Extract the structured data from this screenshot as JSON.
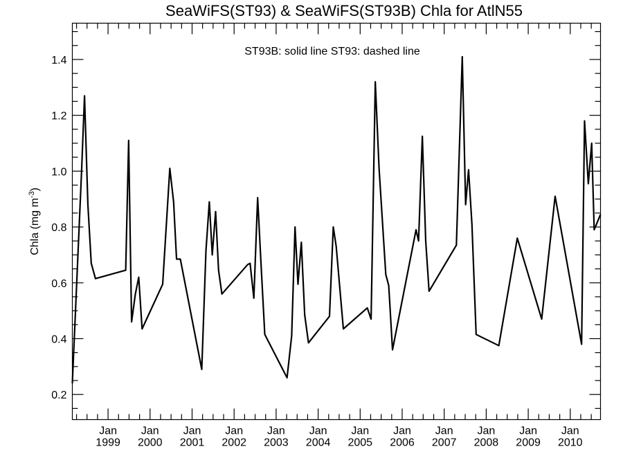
{
  "chart_data": {
    "type": "line",
    "title": "SeaWiFS(ST93) & SeaWiFS(ST93B)  Chla for AtlN55",
    "annotation": "ST93B: solid line   ST93: dashed line",
    "ylabel_main": "Chla (mg m",
    "ylabel_sup": "-3",
    "ylabel_close": ")",
    "ylim": [
      0.11,
      1.53
    ],
    "xlim": [
      1998.15,
      2010.72
    ],
    "yticks": [
      {
        "value": 0.2,
        "label": "0.2"
      },
      {
        "value": 0.4,
        "label": "0.4"
      },
      {
        "value": 0.6,
        "label": "0.6"
      },
      {
        "value": 0.8,
        "label": "0.8"
      },
      {
        "value": 1.0,
        "label": "1.0"
      },
      {
        "value": 1.2,
        "label": "1.2"
      },
      {
        "value": 1.4,
        "label": "1.4"
      }
    ],
    "xticks": [
      {
        "value": 1999.0,
        "month": "Jan",
        "year": "1999"
      },
      {
        "value": 2000.0,
        "month": "Jan",
        "year": "2000"
      },
      {
        "value": 2001.0,
        "month": "Jan",
        "year": "2001"
      },
      {
        "value": 2002.0,
        "month": "Jan",
        "year": "2002"
      },
      {
        "value": 2003.0,
        "month": "Jan",
        "year": "2003"
      },
      {
        "value": 2004.0,
        "month": "Jan",
        "year": "2004"
      },
      {
        "value": 2005.0,
        "month": "Jan",
        "year": "2005"
      },
      {
        "value": 2006.0,
        "month": "Jan",
        "year": "2006"
      },
      {
        "value": 2007.0,
        "month": "Jan",
        "year": "2007"
      },
      {
        "value": 2008.0,
        "month": "Jan",
        "year": "2008"
      },
      {
        "value": 2009.0,
        "month": "Jan",
        "year": "2009"
      },
      {
        "value": 2010.0,
        "month": "Jan",
        "year": "2010"
      }
    ],
    "grid": false,
    "series": [
      {
        "style": "solid",
        "points": [
          [
            1998.15,
            0.24
          ],
          [
            1998.37,
            1.0
          ],
          [
            1998.44,
            1.27
          ],
          [
            1998.52,
            0.88
          ],
          [
            1998.6,
            0.67
          ],
          [
            1998.7,
            0.615
          ],
          [
            1999.42,
            0.645
          ],
          [
            1999.49,
            1.11
          ],
          [
            1999.56,
            0.46
          ],
          [
            1999.65,
            0.56
          ],
          [
            1999.73,
            0.62
          ],
          [
            1999.81,
            0.435
          ],
          [
            2000.3,
            0.595
          ],
          [
            2000.47,
            1.01
          ],
          [
            2000.56,
            0.89
          ],
          [
            2000.63,
            0.685
          ],
          [
            2000.72,
            0.685
          ],
          [
            2001.23,
            0.29
          ],
          [
            2001.33,
            0.715
          ],
          [
            2001.41,
            0.89
          ],
          [
            2001.48,
            0.7
          ],
          [
            2001.56,
            0.855
          ],
          [
            2001.63,
            0.645
          ],
          [
            2001.71,
            0.56
          ],
          [
            2002.32,
            0.665
          ],
          [
            2002.38,
            0.67
          ],
          [
            2002.47,
            0.545
          ],
          [
            2002.56,
            0.905
          ],
          [
            2002.64,
            0.67
          ],
          [
            2002.73,
            0.415
          ],
          [
            2003.26,
            0.26
          ],
          [
            2003.37,
            0.41
          ],
          [
            2003.45,
            0.8
          ],
          [
            2003.52,
            0.595
          ],
          [
            2003.6,
            0.745
          ],
          [
            2003.68,
            0.485
          ],
          [
            2003.77,
            0.385
          ],
          [
            2004.27,
            0.48
          ],
          [
            2004.36,
            0.8
          ],
          [
            2004.43,
            0.73
          ],
          [
            2004.6,
            0.435
          ],
          [
            2005.17,
            0.51
          ],
          [
            2005.26,
            0.47
          ],
          [
            2005.36,
            1.32
          ],
          [
            2005.45,
            1.01
          ],
          [
            2005.61,
            0.63
          ],
          [
            2005.68,
            0.59
          ],
          [
            2005.77,
            0.36
          ],
          [
            2006.33,
            0.79
          ],
          [
            2006.39,
            0.75
          ],
          [
            2006.48,
            1.125
          ],
          [
            2006.56,
            0.75
          ],
          [
            2006.64,
            0.57
          ],
          [
            2007.29,
            0.735
          ],
          [
            2007.43,
            1.41
          ],
          [
            2007.51,
            0.88
          ],
          [
            2007.58,
            1.005
          ],
          [
            2007.66,
            0.81
          ],
          [
            2007.76,
            0.415
          ],
          [
            2008.3,
            0.375
          ],
          [
            2008.74,
            0.76
          ],
          [
            2009.32,
            0.47
          ],
          [
            2009.64,
            0.91
          ],
          [
            2010.27,
            0.38
          ],
          [
            2010.34,
            1.18
          ],
          [
            2010.43,
            0.955
          ],
          [
            2010.51,
            1.1
          ],
          [
            2010.57,
            0.79
          ],
          [
            2010.72,
            0.845
          ]
        ]
      }
    ]
  }
}
